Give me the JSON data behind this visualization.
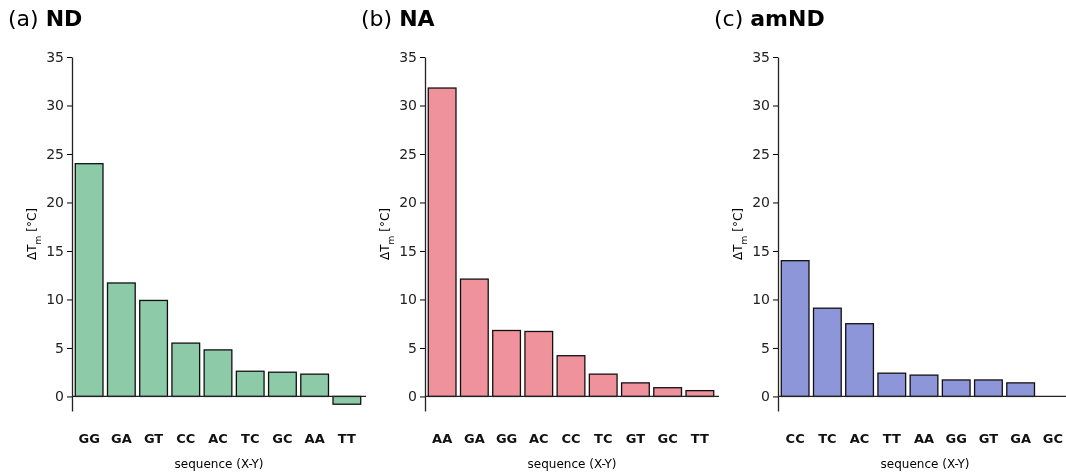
{
  "chart_data": [
    {
      "type": "bar",
      "title": "(a) ND",
      "xlabel": "sequence (X-Y)",
      "ylabel": "ΔT$_{m}$ [°C]",
      "categories": [
        "GG",
        "GA",
        "GT",
        "CC",
        "AC",
        "TC",
        "GC",
        "AA",
        "TT"
      ],
      "values": [
        24,
        11.7,
        9.9,
        5.5,
        4.8,
        2.6,
        2.5,
        2.3,
        -0.8
      ],
      "color": "#8ccaa8",
      "ylim": [
        -1.5,
        35
      ],
      "yticks": [
        0,
        5,
        10,
        15,
        20,
        25,
        30,
        35
      ]
    },
    {
      "type": "bar",
      "title": "(b) NA",
      "xlabel": "sequence (X-Y)",
      "ylabel": "ΔT$_{m}$ [°C]",
      "categories": [
        "AA",
        "GA",
        "GG",
        "AC",
        "CC",
        "TC",
        "GT",
        "GC",
        "TT"
      ],
      "values": [
        31.8,
        12.1,
        6.8,
        6.7,
        4.2,
        2.3,
        1.4,
        0.9,
        0.6
      ],
      "color": "#f0929c",
      "ylim": [
        -1.5,
        35
      ],
      "yticks": [
        0,
        5,
        10,
        15,
        20,
        25,
        30,
        35
      ]
    },
    {
      "type": "bar",
      "title": "(c) amND",
      "xlabel": "sequence (X-Y)",
      "ylabel": "ΔT$_{m}$ [°C]",
      "categories": [
        "CC",
        "TC",
        "AC",
        "TT",
        "AA",
        "GG",
        "GT",
        "GA",
        "GC"
      ],
      "values": [
        14,
        9.1,
        7.5,
        2.4,
        2.2,
        1.7,
        1.7,
        1.4,
        0
      ],
      "color": "#8c96d8",
      "ylim": [
        -1.5,
        35
      ],
      "yticks": [
        0,
        5,
        10,
        15,
        20,
        25,
        30,
        35
      ]
    }
  ]
}
